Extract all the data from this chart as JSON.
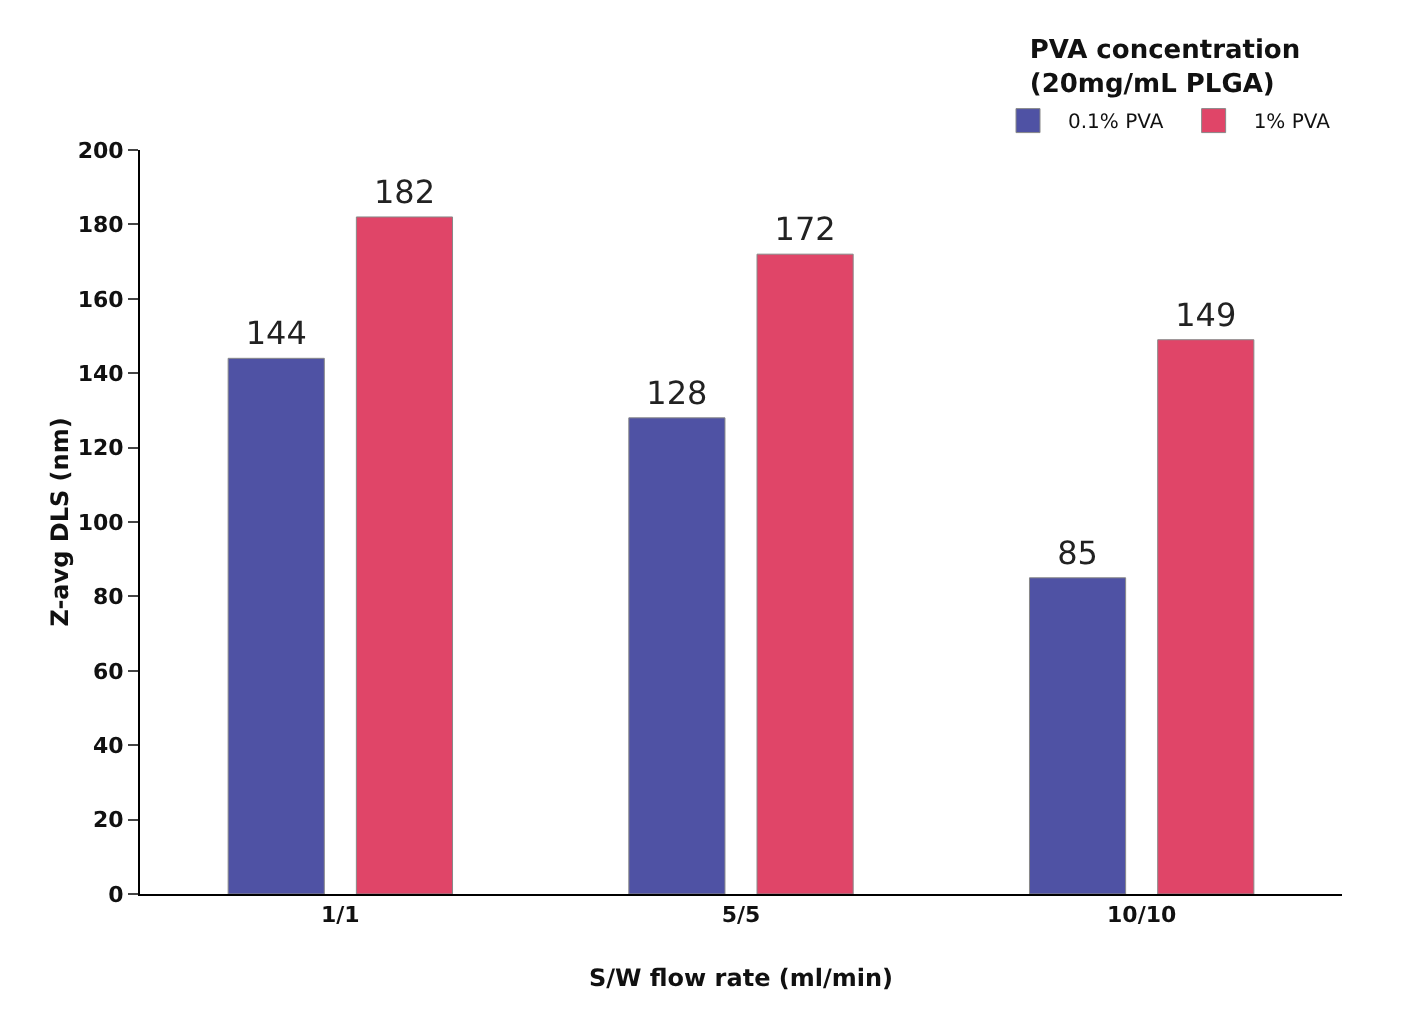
{
  "chart_data": {
    "type": "bar",
    "xlabel": "S/W flow rate (ml/min)",
    "ylabel": "Z-avg DLS (nm)",
    "legend_title": "PVA concentration\n(20mg/mL PLGA)",
    "categories": [
      "1/1",
      "5/5",
      "10/10"
    ],
    "series": [
      {
        "name": "0.1% PVA",
        "color": "#4f52a4",
        "values": [
          144,
          128,
          85
        ]
      },
      {
        "name": "1% PVA",
        "color": "#e04568",
        "values": [
          182,
          172,
          149
        ]
      }
    ],
    "ylim": [
      0,
      200
    ],
    "yticks": [
      0,
      20,
      40,
      60,
      80,
      100,
      120,
      140,
      160,
      180,
      200
    ],
    "grid": false,
    "legend": "top right",
    "data_labels": true
  }
}
